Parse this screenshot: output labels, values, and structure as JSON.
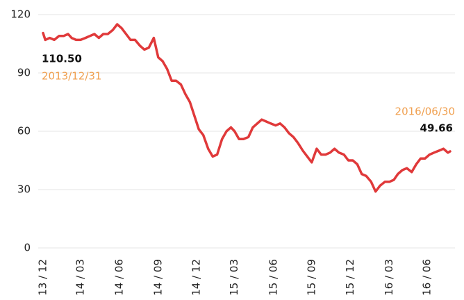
{
  "chart_data": {
    "type": "line",
    "x": [
      "2013/12/31",
      "2014/01/05",
      "2014/01/15",
      "2014/01/25",
      "2014/02/05",
      "2014/02/15",
      "2014/02/25",
      "2014/03/05",
      "2014/03/15",
      "2014/03/25",
      "2014/04/05",
      "2014/04/15",
      "2014/04/25",
      "2014/05/05",
      "2014/05/15",
      "2014/05/25",
      "2014/06/05",
      "2014/06/15",
      "2014/06/25",
      "2014/07/05",
      "2014/07/15",
      "2014/07/25",
      "2014/08/05",
      "2014/08/15",
      "2014/08/25",
      "2014/09/05",
      "2014/09/15",
      "2014/09/25",
      "2014/10/05",
      "2014/10/15",
      "2014/10/25",
      "2014/11/05",
      "2014/11/15",
      "2014/11/25",
      "2014/12/05",
      "2014/12/15",
      "2014/12/25",
      "2015/01/05",
      "2015/01/15",
      "2015/01/25",
      "2015/02/05",
      "2015/02/15",
      "2015/02/25",
      "2015/03/05",
      "2015/03/15",
      "2015/03/25",
      "2015/04/05",
      "2015/04/15",
      "2015/04/25",
      "2015/05/05",
      "2015/05/15",
      "2015/05/25",
      "2015/06/05",
      "2015/06/15",
      "2015/06/25",
      "2015/07/05",
      "2015/07/15",
      "2015/07/25",
      "2015/08/05",
      "2015/08/15",
      "2015/08/25",
      "2015/09/05",
      "2015/09/15",
      "2015/09/25",
      "2015/10/05",
      "2015/10/15",
      "2015/10/25",
      "2015/11/05",
      "2015/11/15",
      "2015/11/25",
      "2015/12/05",
      "2015/12/15",
      "2015/12/25",
      "2016/01/05",
      "2016/01/15",
      "2016/01/25",
      "2016/02/05",
      "2016/02/15",
      "2016/02/25",
      "2016/03/05",
      "2016/03/15",
      "2016/03/25",
      "2016/04/05",
      "2016/04/15",
      "2016/04/25",
      "2016/05/05",
      "2016/05/15",
      "2016/05/25",
      "2016/06/05",
      "2016/06/15",
      "2016/06/25",
      "2016/06/30"
    ],
    "series": [
      {
        "color": "#e0393a",
        "values": [
          110.5,
          107,
          108,
          107,
          109,
          109,
          110,
          108,
          107,
          107,
          108,
          109,
          110,
          108,
          110,
          110,
          112,
          115,
          113,
          110,
          107,
          107,
          104,
          102,
          103,
          108,
          98,
          96,
          92,
          86,
          86,
          84,
          79,
          75,
          68,
          61,
          58,
          51,
          47,
          48,
          56,
          60,
          62,
          60,
          56,
          56,
          57,
          62,
          64,
          66,
          65,
          64,
          63,
          64,
          62,
          59,
          57,
          54,
          50,
          47,
          44,
          51,
          48,
          48,
          49,
          51,
          49,
          48,
          45,
          45,
          43,
          38,
          37,
          34,
          29,
          32,
          34,
          34,
          35,
          38,
          40,
          41,
          39,
          43,
          46,
          46,
          48,
          49,
          50,
          51,
          49,
          49.66
        ]
      }
    ],
    "ylim": [
      0,
      120
    ],
    "yticks": [
      0,
      30,
      60,
      90,
      120
    ],
    "grid": true,
    "xlim": [
      "2013/12/31",
      "2016/06/30"
    ],
    "xticks": [
      {
        "value": "2013/12/31",
        "label": "13 / 12"
      },
      {
        "value": "2014/03/25",
        "label": "14 / 03"
      },
      {
        "value": "2014/06/20",
        "label": "14 / 06"
      },
      {
        "value": "2014/09/15",
        "label": "14 / 09"
      },
      {
        "value": "2014/12/10",
        "label": "14 / 12"
      },
      {
        "value": "2015/03/05",
        "label": "15 / 03"
      },
      {
        "value": "2015/06/01",
        "label": "15 / 06"
      },
      {
        "value": "2015/08/25",
        "label": "15 / 09"
      },
      {
        "value": "2015/11/20",
        "label": "15 / 12"
      },
      {
        "value": "2016/02/15",
        "label": "16 / 03"
      },
      {
        "value": "2016/05/10",
        "label": "16 / 06"
      }
    ],
    "annotations": [
      {
        "value": "110.50",
        "date": "2013/12/31"
      },
      {
        "value": "49.66",
        "date": "2016/06/30"
      }
    ]
  }
}
